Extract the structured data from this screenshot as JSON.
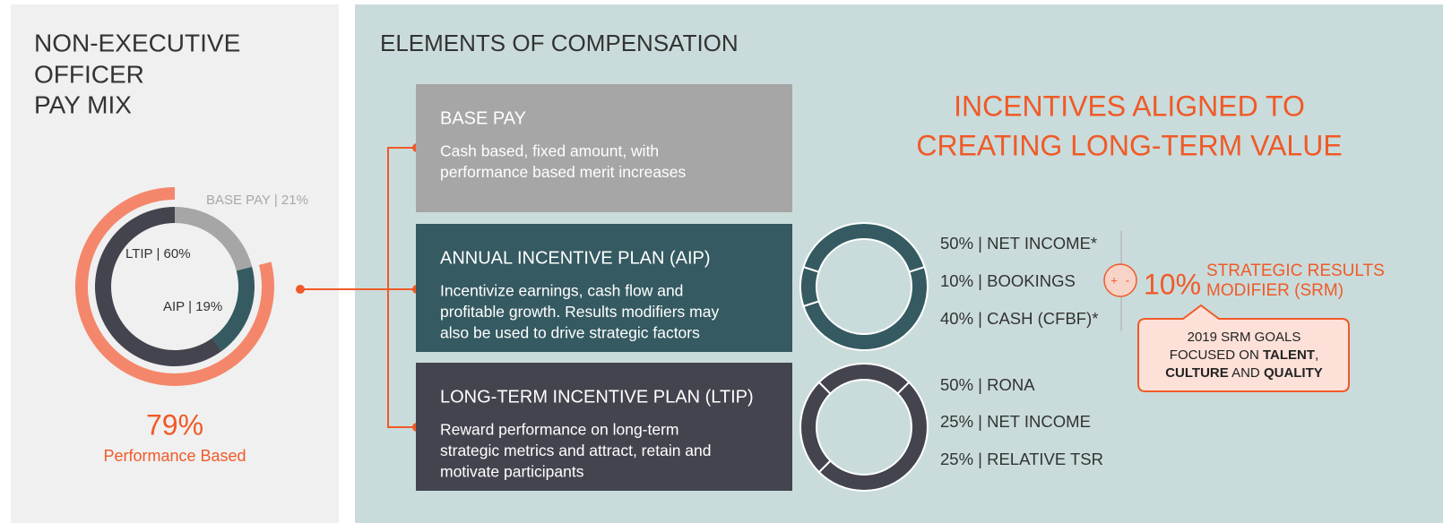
{
  "pay_mix": {
    "title": [
      "NON-EXECUTIVE",
      "OFFICER",
      "PAY MIX"
    ],
    "segments": [
      {
        "label": "BASE PAY | 21%",
        "value": 21
      },
      {
        "label": "AIP | 19%",
        "value": 19
      },
      {
        "label": "LTIP | 60%",
        "value": 60
      }
    ],
    "performance": {
      "label": "79%",
      "value": 79,
      "caption": "Performance Based"
    }
  },
  "elements": {
    "title": "ELEMENTS OF COMPENSATION",
    "boxes": [
      {
        "title": "BASE PAY",
        "desc": [
          "Cash based, fixed amount, with",
          "performance based merit increases"
        ]
      },
      {
        "title": "ANNUAL INCENTIVE PLAN (AIP)",
        "desc": [
          "Incentivize earnings, cash flow and",
          "profitable growth. Results modifiers may",
          "also be used to drive strategic factors"
        ]
      },
      {
        "title": "LONG-TERM INCENTIVE PLAN (LTIP)",
        "desc": [
          "Reward performance on long-term",
          "strategic metrics and attract, retain and",
          "motivate participants"
        ]
      }
    ]
  },
  "headline": [
    "INCENTIVES ALIGNED TO",
    "CREATING LONG-TERM VALUE"
  ],
  "aip_metrics": [
    {
      "label": "50% | NET INCOME*",
      "value": 50
    },
    {
      "label": "10% | BOOKINGS",
      "value": 10
    },
    {
      "label": "40% | CASH (CFBF)*",
      "value": 40
    }
  ],
  "ltip_metrics": [
    {
      "label": "50% | RONA",
      "value": 50
    },
    {
      "label": "25% | NET INCOME",
      "value": 25
    },
    {
      "label": "25% | RELATIVE TSR",
      "value": 25
    }
  ],
  "srm": {
    "plus": "+",
    "minus": "-",
    "value_label": "10%",
    "title": [
      "STRATEGIC RESULTS",
      "MODIFIER (SRM)"
    ],
    "goals": [
      "2019 SRM GOALS",
      "FOCUSED ON ",
      "TALENT",
      ",",
      "CULTURE",
      " AND ",
      "QUALITY"
    ]
  }
}
